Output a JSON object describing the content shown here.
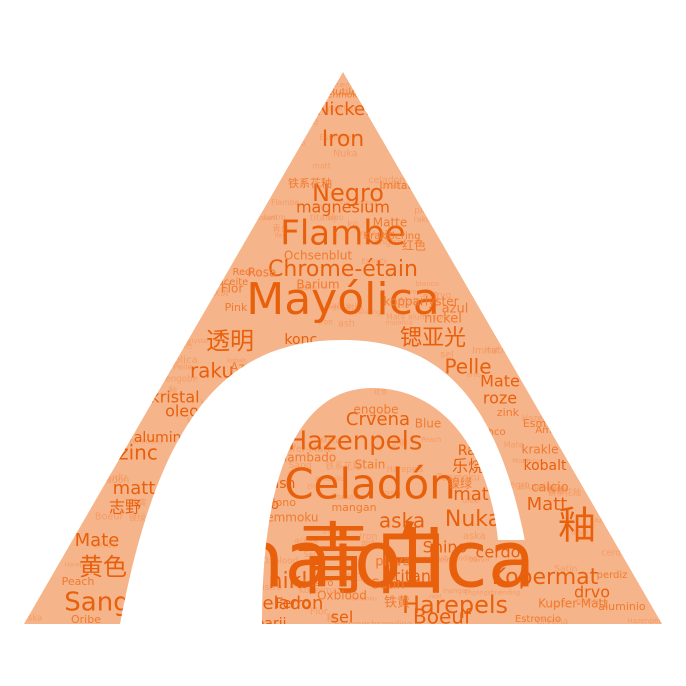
{
  "colors": {
    "background": "#ffffff",
    "shape": "#f6b48a",
    "word": "#e8600c"
  },
  "wordcloud": {
    "shape": "triangle-with-arch",
    "words": [
      "青白",
      "Mayólica",
      "Celadón",
      "Flambe",
      "Chrome-étain",
      "Hazenpels",
      "Harepels",
      "Kopermat",
      "Sang",
      "透明",
      "锶亚光",
      "釉",
      "黄色",
      "Negro",
      "Iron",
      "Nickel",
      "magnesium",
      "raku",
      "Mate",
      "Shino",
      "Crvena",
      "Pelle",
      "roze",
      "Nuka",
      "aska",
      "titanij",
      "Boeuf",
      "nikl",
      "celadon",
      "zinc",
      "matt",
      "志野",
      "kristal",
      "Rutilo",
      "Tenmoku",
      "Matte",
      "Rosa",
      "vit",
      "红色",
      "Ochsenblut",
      "Barium",
      "Flor",
      "Pink",
      "aceite",
      "Red",
      "konc.",
      "Azul",
      "nickel",
      "kopparlyster",
      "azul",
      "oleo",
      "Mate",
      "alumine",
      "engobe",
      "Blue",
      "flambado",
      "Stain",
      "乐烧",
      "镍绿",
      "kobalt",
      "calcio",
      "krakle",
      "mat",
      "cerdo",
      "Matt",
      "plava",
      "barij",
      "sel",
      "铁黄",
      "Oxblood",
      "ko",
      "ash",
      "Mono",
      "temmoku",
      "mangan",
      "Satin",
      "Esmalte",
      "drvo",
      "Peach",
      "Oribe",
      "Theestof",
      "Ferro",
      "Engangsbrænding",
      "Celadon",
      "Estroncio",
      "Mate aluminium",
      "Kupfer-Matt",
      "Imitation",
      "Krakelering",
      "Raku",
      "铁系花釉",
      "Lustro",
      "zink",
      "blanco",
      "aluminio",
      "perdiz",
      "Bleu",
      "Amarillo",
      "maiolica"
    ]
  }
}
